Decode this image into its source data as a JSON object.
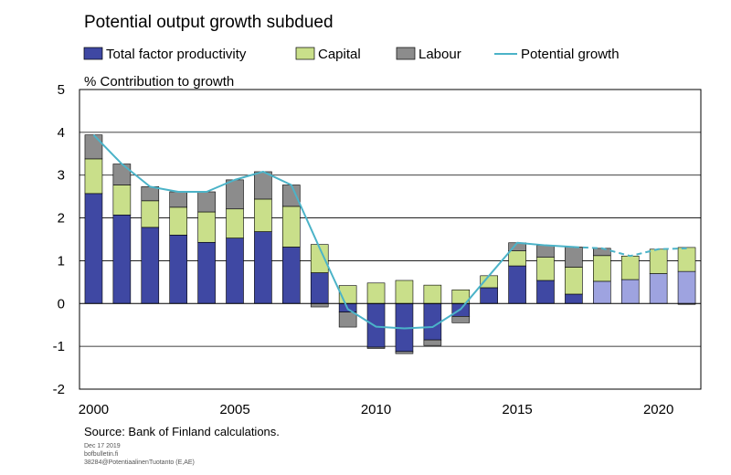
{
  "chart_data": {
    "type": "bar",
    "stacked": true,
    "title": "Potential output growth subdued",
    "ylabel": "% Contribution to growth",
    "ylim": [
      -2,
      5
    ],
    "yticks": [
      "5",
      "4",
      "3",
      "2",
      "1",
      "0",
      "-1",
      "-2"
    ],
    "xticks": [
      "2000",
      "2005",
      "2010",
      "2015",
      "2020"
    ],
    "grid": true,
    "legend_position": "top",
    "x": [
      2000,
      2001,
      2002,
      2003,
      2004,
      2005,
      2006,
      2007,
      2008,
      2009,
      2010,
      2011,
      2012,
      2013,
      2014,
      2015,
      2016,
      2017,
      2018,
      2019,
      2020,
      2021
    ],
    "forecast_from": 2018,
    "series": [
      {
        "name": "Total factor productivity",
        "kind": "bar",
        "color": "#3f48a3",
        "forecast_color": "#9ea3e0",
        "values": [
          2.57,
          2.07,
          1.78,
          1.6,
          1.43,
          1.53,
          1.68,
          1.32,
          0.72,
          -0.2,
          -1.02,
          -1.12,
          -0.85,
          -0.3,
          0.37,
          0.88,
          0.54,
          0.22,
          0.52,
          0.56,
          0.7,
          0.75
        ]
      },
      {
        "name": "Capital",
        "kind": "bar",
        "color": "#c9df8a",
        "values": [
          0.81,
          0.7,
          0.62,
          0.65,
          0.71,
          0.68,
          0.76,
          0.95,
          0.66,
          0.42,
          0.48,
          0.54,
          0.43,
          0.32,
          0.28,
          0.35,
          0.54,
          0.63,
          0.6,
          0.55,
          0.57,
          0.56
        ]
      },
      {
        "name": "Labour",
        "kind": "bar",
        "color": "#8c8c8c",
        "values": [
          0.56,
          0.49,
          0.33,
          0.36,
          0.47,
          0.68,
          0.64,
          0.5,
          -0.08,
          -0.35,
          -0.03,
          -0.05,
          -0.13,
          -0.15,
          0.0,
          0.19,
          0.28,
          0.47,
          0.17,
          0.0,
          0.0,
          -0.02
        ]
      },
      {
        "name": "Potential growth",
        "kind": "line",
        "color": "#4bb3c8",
        "values": [
          3.94,
          3.26,
          2.73,
          2.61,
          2.61,
          2.89,
          3.08,
          2.77,
          1.3,
          -0.13,
          -0.54,
          -0.58,
          -0.55,
          -0.13,
          0.65,
          1.42,
          1.36,
          1.32,
          1.29,
          1.11,
          1.27,
          1.29
        ]
      }
    ]
  },
  "legend": [
    {
      "label": "Total factor productivity",
      "type": "box",
      "color": "#3f48a3"
    },
    {
      "label": "Capital",
      "type": "box",
      "color": "#c9df8a"
    },
    {
      "label": "Labour",
      "type": "box",
      "color": "#8c8c8c"
    },
    {
      "label": "Potential growth",
      "type": "line",
      "color": "#4bb3c8"
    }
  ],
  "source": "Source: Bank of Finland calculations.",
  "footer_lines": [
    "Dec 17 2019",
    "bofbulletin.fi",
    "38284@PotentiaalinenTuotanto (E,AE)"
  ]
}
